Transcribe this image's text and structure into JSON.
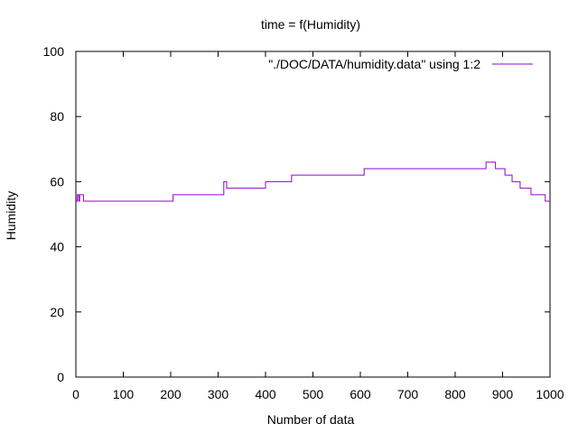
{
  "chart_data": {
    "type": "line",
    "title": "time = f(Humidity)",
    "xlabel": "Number of data",
    "ylabel": "Humidity",
    "xlim": [
      0,
      1000
    ],
    "ylim": [
      0,
      100
    ],
    "x_ticks": [
      0,
      100,
      200,
      300,
      400,
      500,
      600,
      700,
      800,
      900,
      1000
    ],
    "y_ticks": [
      0,
      20,
      40,
      60,
      80,
      100
    ],
    "grid": false,
    "legend_position": "top-right",
    "series": [
      {
        "name": "\"./DOC/DATA/humidity.data\" using 1:2",
        "color": "#9400d3",
        "step": true,
        "points": [
          [
            0,
            54
          ],
          [
            3,
            56
          ],
          [
            6,
            54
          ],
          [
            8,
            56
          ],
          [
            14,
            56
          ],
          [
            16,
            54
          ],
          [
            205,
            56
          ],
          [
            312,
            60
          ],
          [
            318,
            58
          ],
          [
            400,
            60
          ],
          [
            455,
            62
          ],
          [
            608,
            64
          ],
          [
            865,
            66
          ],
          [
            885,
            64
          ],
          [
            905,
            62
          ],
          [
            920,
            60
          ],
          [
            937,
            58
          ],
          [
            960,
            56
          ],
          [
            990,
            54
          ],
          [
            1000,
            54
          ]
        ]
      }
    ]
  }
}
